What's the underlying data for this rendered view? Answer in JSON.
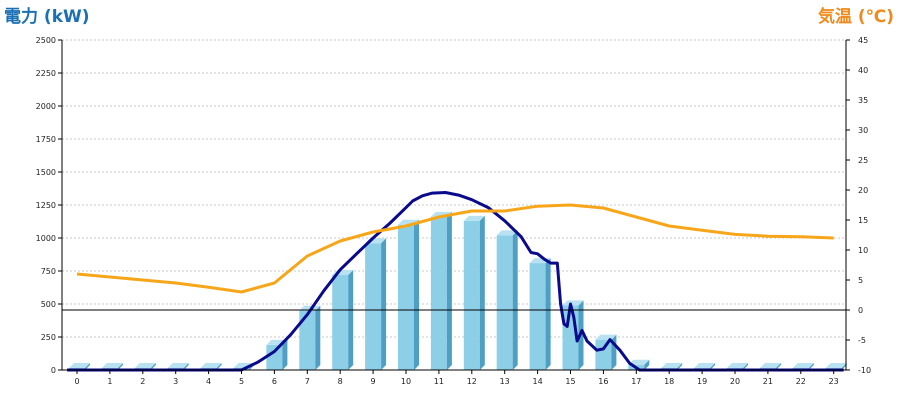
{
  "colors": {
    "power_axis": "#1a6fb5",
    "temp_axis": "#f08a1c",
    "bar_fill": "#8ecfe8",
    "bar_side": "#4e9fc3",
    "bar_top": "#b8e2f2",
    "power_line": "#0a0a8c",
    "temp_line": "#f7a61a",
    "grid": "#c8c8c8"
  },
  "chart_data": {
    "type": "bar",
    "ylabel_left": "電力 (kW)",
    "ylabel_right": "気温 (℃)",
    "categories": [
      "0",
      "1",
      "2",
      "3",
      "4",
      "5",
      "6",
      "7",
      "8",
      "9",
      "10",
      "11",
      "12",
      "13",
      "14",
      "15",
      "16",
      "17",
      "18",
      "19",
      "20",
      "21",
      "22",
      "23"
    ],
    "ylim_left": [
      0,
      2500
    ],
    "yticks_left": [
      "0",
      "250",
      "500",
      "750",
      "1000",
      "1250",
      "1500",
      "1750",
      "2000",
      "2250",
      "2500"
    ],
    "ylim_right": [
      -10,
      45
    ],
    "yticks_right": [
      "-10",
      "-5",
      "0",
      "5",
      "10",
      "15",
      "20",
      "25",
      "30",
      "35",
      "40",
      "45"
    ],
    "grid": true,
    "reference_line_temp": 0,
    "series": [
      {
        "kind": "bar",
        "axis": "left",
        "values": [
          0,
          0,
          0,
          0,
          0,
          0,
          190,
          450,
          720,
          960,
          1100,
          1160,
          1130,
          1020,
          810,
          490,
          230,
          40,
          0,
          0,
          0,
          0,
          0,
          0
        ]
      },
      {
        "kind": "line",
        "axis": "left",
        "points": [
          [
            -0.3,
            0
          ],
          [
            5.0,
            0
          ],
          [
            5.5,
            60
          ],
          [
            6.0,
            140
          ],
          [
            6.5,
            270
          ],
          [
            7.0,
            420
          ],
          [
            7.5,
            600
          ],
          [
            8.0,
            760
          ],
          [
            8.5,
            880
          ],
          [
            9.0,
            1000
          ],
          [
            9.5,
            1110
          ],
          [
            10.0,
            1230
          ],
          [
            10.2,
            1280
          ],
          [
            10.5,
            1320
          ],
          [
            10.8,
            1340
          ],
          [
            11.2,
            1345
          ],
          [
            11.6,
            1325
          ],
          [
            12.0,
            1290
          ],
          [
            12.5,
            1230
          ],
          [
            13.0,
            1130
          ],
          [
            13.5,
            1010
          ],
          [
            13.8,
            890
          ],
          [
            14.0,
            880
          ],
          [
            14.2,
            840
          ],
          [
            14.4,
            810
          ],
          [
            14.6,
            810
          ],
          [
            14.7,
            500
          ],
          [
            14.8,
            350
          ],
          [
            14.9,
            330
          ],
          [
            15.0,
            500
          ],
          [
            15.1,
            400
          ],
          [
            15.2,
            220
          ],
          [
            15.35,
            300
          ],
          [
            15.5,
            220
          ],
          [
            15.8,
            150
          ],
          [
            16.0,
            160
          ],
          [
            16.2,
            230
          ],
          [
            16.5,
            150
          ],
          [
            16.8,
            50
          ],
          [
            17.1,
            0
          ],
          [
            23.3,
            0
          ]
        ]
      },
      {
        "kind": "line",
        "axis": "right",
        "points": [
          [
            0,
            6
          ],
          [
            1,
            5.5
          ],
          [
            2,
            5
          ],
          [
            3,
            4.5
          ],
          [
            4,
            3.8
          ],
          [
            5,
            3
          ],
          [
            6,
            4.5
          ],
          [
            7,
            9
          ],
          [
            8,
            11.5
          ],
          [
            9,
            13
          ],
          [
            10,
            14
          ],
          [
            11,
            15.5
          ],
          [
            12,
            16.5
          ],
          [
            13,
            16.5
          ],
          [
            14,
            17.3
          ],
          [
            15,
            17.5
          ],
          [
            16,
            17
          ],
          [
            17,
            15.5
          ],
          [
            18,
            14
          ],
          [
            19,
            13.3
          ],
          [
            20,
            12.6
          ],
          [
            21,
            12.3
          ],
          [
            22,
            12.2
          ],
          [
            23,
            12
          ]
        ]
      }
    ]
  }
}
